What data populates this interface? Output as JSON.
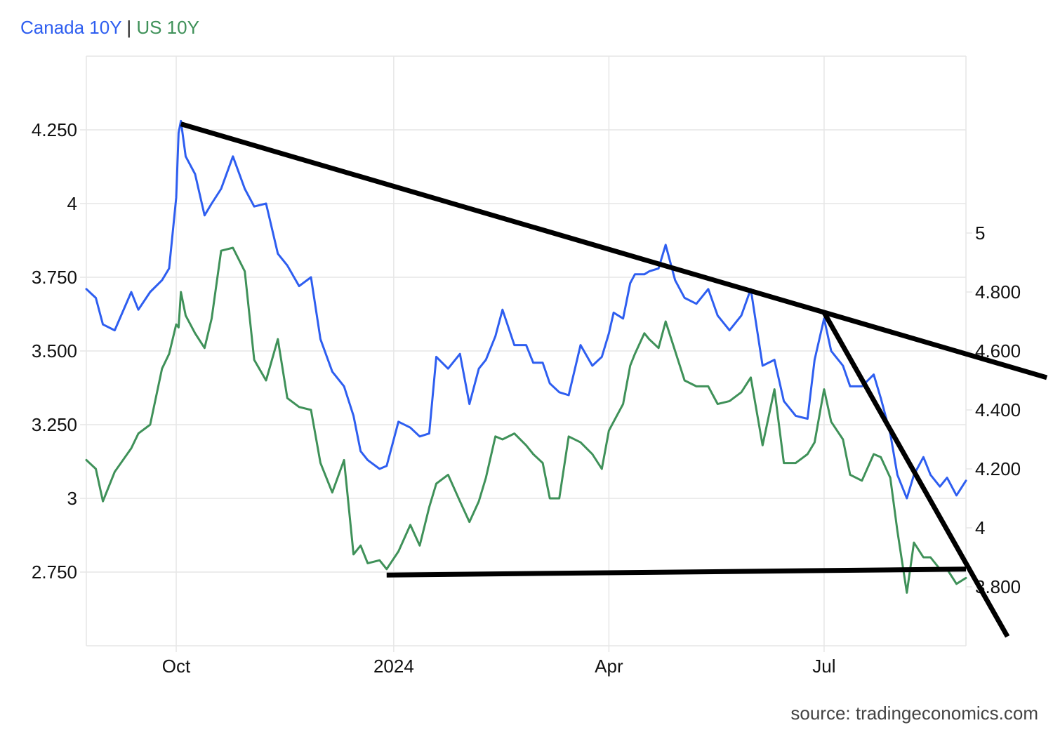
{
  "colors": {
    "canada": "#2e5ef0",
    "us": "#3f9159",
    "grid": "#e6e6e6",
    "trendline": "#000000"
  },
  "chart_data": {
    "type": "line",
    "title_parts": {
      "canada": "Canada 10Y",
      "separator": "|",
      "us": "US 10Y"
    },
    "source": "source: tradingeconomics.com",
    "x_ticks": [
      {
        "date": "2023-10-01",
        "label": "Oct"
      },
      {
        "date": "2024-01-01",
        "label": "2024"
      },
      {
        "date": "2024-04-01",
        "label": "Apr"
      },
      {
        "date": "2024-07-01",
        "label": "Jul"
      }
    ],
    "xlim": [
      "2023-08-24",
      "2024-08-30"
    ],
    "left_axis": {
      "series": "Canada 10Y",
      "ylim": [
        2.5,
        4.5
      ],
      "ticks": [
        2.75,
        3,
        3.25,
        3.5,
        3.75,
        4,
        4.25
      ],
      "tick_labels": [
        "2.750",
        "3",
        "3.250",
        "3.500",
        "3.750",
        "4",
        "4.250"
      ]
    },
    "right_axis": {
      "series": "US 10Y",
      "ylim": [
        3.6,
        5.6
      ],
      "ticks": [
        3.8,
        4,
        4.2,
        4.4,
        4.6,
        4.8,
        5
      ],
      "tick_labels": [
        "3.800",
        "4",
        "4.200",
        "4.400",
        "4.600",
        "4.800",
        "5"
      ]
    },
    "grid": true,
    "series": [
      {
        "name": "Canada 10Y",
        "axis": "left",
        "points": [
          [
            "2023-08-24",
            3.71
          ],
          [
            "2023-08-28",
            3.68
          ],
          [
            "2023-08-31",
            3.59
          ],
          [
            "2023-09-05",
            3.57
          ],
          [
            "2023-09-12",
            3.7
          ],
          [
            "2023-09-15",
            3.64
          ],
          [
            "2023-09-20",
            3.7
          ],
          [
            "2023-09-25",
            3.74
          ],
          [
            "2023-09-28",
            3.78
          ],
          [
            "2023-10-01",
            4.02
          ],
          [
            "2023-10-02",
            4.24
          ],
          [
            "2023-10-03",
            4.28
          ],
          [
            "2023-10-05",
            4.16
          ],
          [
            "2023-10-09",
            4.1
          ],
          [
            "2023-10-13",
            3.96
          ],
          [
            "2023-10-16",
            4.0
          ],
          [
            "2023-10-20",
            4.05
          ],
          [
            "2023-10-25",
            4.16
          ],
          [
            "2023-10-30",
            4.05
          ],
          [
            "2023-11-03",
            3.99
          ],
          [
            "2023-11-08",
            4.0
          ],
          [
            "2023-11-13",
            3.83
          ],
          [
            "2023-11-17",
            3.79
          ],
          [
            "2023-11-22",
            3.72
          ],
          [
            "2023-11-27",
            3.75
          ],
          [
            "2023-12-01",
            3.54
          ],
          [
            "2023-12-06",
            3.43
          ],
          [
            "2023-12-11",
            3.38
          ],
          [
            "2023-12-15",
            3.28
          ],
          [
            "2023-12-18",
            3.16
          ],
          [
            "2023-12-21",
            3.13
          ],
          [
            "2023-12-26",
            3.1
          ],
          [
            "2023-12-29",
            3.11
          ],
          [
            "2024-01-03",
            3.26
          ],
          [
            "2024-01-08",
            3.24
          ],
          [
            "2024-01-12",
            3.21
          ],
          [
            "2024-01-16",
            3.22
          ],
          [
            "2024-01-19",
            3.48
          ],
          [
            "2024-01-24",
            3.44
          ],
          [
            "2024-01-29",
            3.49
          ],
          [
            "2024-02-02",
            3.32
          ],
          [
            "2024-02-06",
            3.44
          ],
          [
            "2024-02-09",
            3.47
          ],
          [
            "2024-02-13",
            3.55
          ],
          [
            "2024-02-16",
            3.64
          ],
          [
            "2024-02-21",
            3.52
          ],
          [
            "2024-02-26",
            3.52
          ],
          [
            "2024-02-29",
            3.46
          ],
          [
            "2024-03-04",
            3.46
          ],
          [
            "2024-03-07",
            3.39
          ],
          [
            "2024-03-11",
            3.36
          ],
          [
            "2024-03-15",
            3.35
          ],
          [
            "2024-03-20",
            3.52
          ],
          [
            "2024-03-25",
            3.45
          ],
          [
            "2024-03-29",
            3.48
          ],
          [
            "2024-04-01",
            3.56
          ],
          [
            "2024-04-03",
            3.63
          ],
          [
            "2024-04-07",
            3.61
          ],
          [
            "2024-04-10",
            3.73
          ],
          [
            "2024-04-12",
            3.76
          ],
          [
            "2024-04-16",
            3.76
          ],
          [
            "2024-04-18",
            3.77
          ],
          [
            "2024-04-22",
            3.78
          ],
          [
            "2024-04-25",
            3.86
          ],
          [
            "2024-04-29",
            3.74
          ],
          [
            "2024-05-03",
            3.68
          ],
          [
            "2024-05-08",
            3.66
          ],
          [
            "2024-05-13",
            3.71
          ],
          [
            "2024-05-17",
            3.62
          ],
          [
            "2024-05-22",
            3.57
          ],
          [
            "2024-05-27",
            3.62
          ],
          [
            "2024-05-31",
            3.71
          ],
          [
            "2024-06-05",
            3.45
          ],
          [
            "2024-06-10",
            3.47
          ],
          [
            "2024-06-14",
            3.33
          ],
          [
            "2024-06-19",
            3.28
          ],
          [
            "2024-06-24",
            3.27
          ],
          [
            "2024-06-27",
            3.47
          ],
          [
            "2024-07-01",
            3.61
          ],
          [
            "2024-07-04",
            3.5
          ],
          [
            "2024-07-09",
            3.45
          ],
          [
            "2024-07-12",
            3.38
          ],
          [
            "2024-07-17",
            3.38
          ],
          [
            "2024-07-22",
            3.42
          ],
          [
            "2024-07-25",
            3.34
          ],
          [
            "2024-07-29",
            3.22
          ],
          [
            "2024-08-01",
            3.08
          ],
          [
            "2024-08-05",
            3.0
          ],
          [
            "2024-08-08",
            3.08
          ],
          [
            "2024-08-12",
            3.14
          ],
          [
            "2024-08-15",
            3.08
          ],
          [
            "2024-08-19",
            3.04
          ],
          [
            "2024-08-22",
            3.07
          ],
          [
            "2024-08-26",
            3.01
          ],
          [
            "2024-08-30",
            3.06
          ]
        ]
      },
      {
        "name": "US 10Y",
        "axis": "right",
        "points": [
          [
            "2023-08-24",
            4.23
          ],
          [
            "2023-08-28",
            4.2
          ],
          [
            "2023-08-31",
            4.09
          ],
          [
            "2023-09-05",
            4.19
          ],
          [
            "2023-09-12",
            4.27
          ],
          [
            "2023-09-15",
            4.32
          ],
          [
            "2023-09-20",
            4.35
          ],
          [
            "2023-09-25",
            4.54
          ],
          [
            "2023-09-28",
            4.59
          ],
          [
            "2023-10-01",
            4.69
          ],
          [
            "2023-10-02",
            4.68
          ],
          [
            "2023-10-03",
            4.8
          ],
          [
            "2023-10-05",
            4.72
          ],
          [
            "2023-10-09",
            4.66
          ],
          [
            "2023-10-13",
            4.61
          ],
          [
            "2023-10-16",
            4.71
          ],
          [
            "2023-10-20",
            4.94
          ],
          [
            "2023-10-25",
            4.95
          ],
          [
            "2023-10-30",
            4.87
          ],
          [
            "2023-11-03",
            4.57
          ],
          [
            "2023-11-08",
            4.5
          ],
          [
            "2023-11-13",
            4.64
          ],
          [
            "2023-11-17",
            4.44
          ],
          [
            "2023-11-22",
            4.41
          ],
          [
            "2023-11-27",
            4.4
          ],
          [
            "2023-12-01",
            4.22
          ],
          [
            "2023-12-06",
            4.12
          ],
          [
            "2023-12-11",
            4.23
          ],
          [
            "2023-12-15",
            3.91
          ],
          [
            "2023-12-18",
            3.94
          ],
          [
            "2023-12-21",
            3.88
          ],
          [
            "2023-12-26",
            3.89
          ],
          [
            "2023-12-29",
            3.86
          ],
          [
            "2024-01-03",
            3.92
          ],
          [
            "2024-01-08",
            4.01
          ],
          [
            "2024-01-12",
            3.94
          ],
          [
            "2024-01-16",
            4.07
          ],
          [
            "2024-01-19",
            4.15
          ],
          [
            "2024-01-24",
            4.18
          ],
          [
            "2024-01-29",
            4.09
          ],
          [
            "2024-02-02",
            4.02
          ],
          [
            "2024-02-06",
            4.09
          ],
          [
            "2024-02-09",
            4.17
          ],
          [
            "2024-02-13",
            4.31
          ],
          [
            "2024-02-16",
            4.3
          ],
          [
            "2024-02-21",
            4.32
          ],
          [
            "2024-02-26",
            4.28
          ],
          [
            "2024-02-29",
            4.25
          ],
          [
            "2024-03-04",
            4.22
          ],
          [
            "2024-03-07",
            4.1
          ],
          [
            "2024-03-11",
            4.1
          ],
          [
            "2024-03-15",
            4.31
          ],
          [
            "2024-03-20",
            4.29
          ],
          [
            "2024-03-25",
            4.25
          ],
          [
            "2024-03-29",
            4.2
          ],
          [
            "2024-04-01",
            4.33
          ],
          [
            "2024-04-03",
            4.36
          ],
          [
            "2024-04-07",
            4.42
          ],
          [
            "2024-04-10",
            4.55
          ],
          [
            "2024-04-12",
            4.59
          ],
          [
            "2024-04-16",
            4.66
          ],
          [
            "2024-04-18",
            4.64
          ],
          [
            "2024-04-22",
            4.61
          ],
          [
            "2024-04-25",
            4.7
          ],
          [
            "2024-04-29",
            4.6
          ],
          [
            "2024-05-03",
            4.5
          ],
          [
            "2024-05-08",
            4.48
          ],
          [
            "2024-05-13",
            4.48
          ],
          [
            "2024-05-17",
            4.42
          ],
          [
            "2024-05-22",
            4.43
          ],
          [
            "2024-05-27",
            4.46
          ],
          [
            "2024-05-31",
            4.51
          ],
          [
            "2024-06-05",
            4.28
          ],
          [
            "2024-06-10",
            4.47
          ],
          [
            "2024-06-14",
            4.22
          ],
          [
            "2024-06-19",
            4.22
          ],
          [
            "2024-06-24",
            4.25
          ],
          [
            "2024-06-27",
            4.29
          ],
          [
            "2024-07-01",
            4.47
          ],
          [
            "2024-07-04",
            4.36
          ],
          [
            "2024-07-09",
            4.3
          ],
          [
            "2024-07-12",
            4.18
          ],
          [
            "2024-07-17",
            4.16
          ],
          [
            "2024-07-22",
            4.25
          ],
          [
            "2024-07-25",
            4.24
          ],
          [
            "2024-07-29",
            4.17
          ],
          [
            "2024-08-01",
            3.99
          ],
          [
            "2024-08-05",
            3.78
          ],
          [
            "2024-08-08",
            3.95
          ],
          [
            "2024-08-12",
            3.9
          ],
          [
            "2024-08-15",
            3.9
          ],
          [
            "2024-08-19",
            3.86
          ],
          [
            "2024-08-22",
            3.86
          ],
          [
            "2024-08-26",
            3.81
          ],
          [
            "2024-08-30",
            3.83
          ]
        ]
      }
    ],
    "trendlines": [
      {
        "axis": "left",
        "from": [
          "2023-10-03",
          4.27
        ],
        "to": [
          "2024-08-30",
          3.49
        ]
      },
      {
        "axis": "left",
        "from": [
          "2023-12-29",
          2.74
        ],
        "to": [
          "2024-08-30",
          2.76
        ]
      },
      {
        "axis": "left",
        "from": [
          "2024-07-01",
          3.63
        ],
        "to": [
          "2024-08-30",
          2.78
        ]
      }
    ]
  }
}
